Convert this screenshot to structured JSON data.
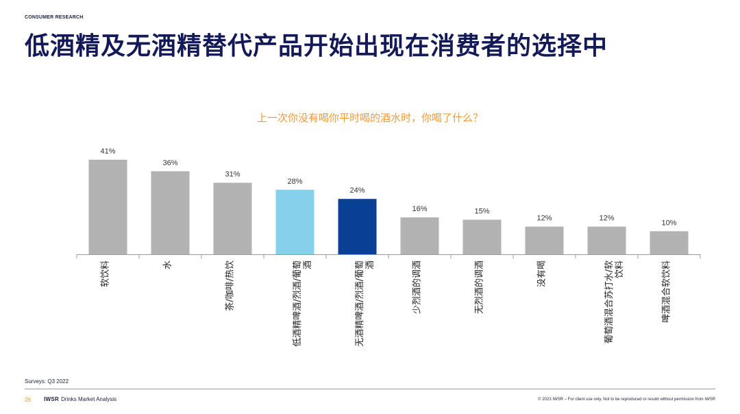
{
  "header": {
    "eyebrow": "CONSUMER RESEARCH",
    "title": "低酒精及无酒精替代产品开始出现在消费者的选择中"
  },
  "chart_data": {
    "type": "bar",
    "title": "上一次你没有喝你平时喝的酒水时，你喝了什么？",
    "xlabel": "",
    "ylabel": "",
    "ylim": [
      0,
      41
    ],
    "grid": false,
    "legend": "none",
    "categories": [
      "软饮料",
      "水",
      "茶/咖啡/热饮",
      "低酒精啤酒/烈酒/葡萄酒",
      "无酒精啤酒/烈酒/葡萄酒",
      "少烈酒的调酒",
      "无烈酒的调酒",
      "没有喝",
      "葡萄酒混合苏打水/软饮料",
      "啤酒混合软饮料"
    ],
    "values": [
      41,
      36,
      31,
      28,
      24,
      16,
      15,
      12,
      12,
      10
    ],
    "data_labels": [
      "41%",
      "36%",
      "31%",
      "28%",
      "24%",
      "16%",
      "15%",
      "12%",
      "12%",
      "10%"
    ],
    "label_lines": [
      [
        "软饮料"
      ],
      [
        "水"
      ],
      [
        "茶/咖啡/热饮"
      ],
      [
        "低酒精啤酒/烈酒/葡萄",
        "酒"
      ],
      [
        "无酒精啤酒/烈酒/葡萄",
        "酒"
      ],
      [
        "少烈酒的调酒"
      ],
      [
        "无烈酒的调酒"
      ],
      [
        "没有喝"
      ],
      [
        "葡萄酒混合苏打水/软",
        "饮料"
      ],
      [
        "啤酒混合软饮料"
      ]
    ],
    "colors": [
      "#b2b2b2",
      "#b2b2b2",
      "#b2b2b2",
      "#87d0ec",
      "#0a3f96",
      "#b2b2b2",
      "#b2b2b2",
      "#b2b2b2",
      "#b2b2b2",
      "#b2b2b2"
    ]
  },
  "footer": {
    "survey": "Surveys: Q3 2022",
    "page_number": "26",
    "brand_logo": "IWSR",
    "brand_text": "Drinks Market Analysis",
    "copyright": "© 2023 IWSR – For client use only. Not to be reproduced or resold without permission from IWSR"
  }
}
